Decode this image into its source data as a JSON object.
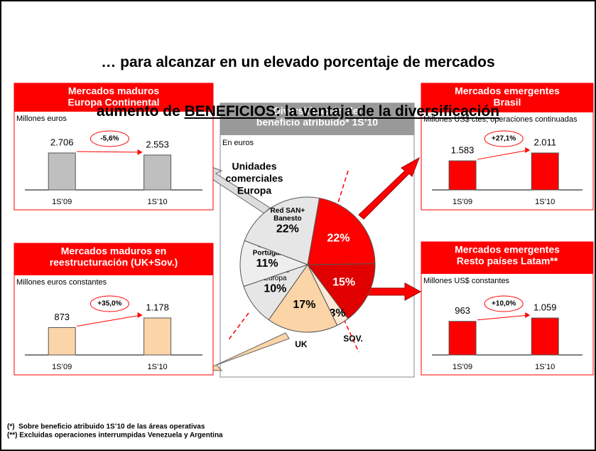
{
  "title": {
    "line1": "… para alcanzar en un elevado porcentaje de mercados",
    "line2": [
      "aumento de ",
      "BENEFICIOS",
      ": ",
      "la ventaja de la diversificación"
    ]
  },
  "chart_data": [
    {
      "type": "bar",
      "title": [
        "Mercados maduros",
        "Europa Continental"
      ],
      "subtitle": "Millones euros",
      "categories": [
        "1S’09",
        "1S’10"
      ],
      "values": [
        2706,
        2553
      ],
      "value_labels": [
        "2.706",
        "2.553"
      ],
      "change": "-5,6%",
      "color": "#bfbfbf"
    },
    {
      "type": "bar",
      "title": [
        "Mercados emergentes",
        "Brasil"
      ],
      "subtitle": "Millones US$ ctes; operaciones continuadas",
      "categories": [
        "1S’09",
        "1S’10"
      ],
      "values": [
        1583,
        2011
      ],
      "value_labels": [
        "1.583",
        "2.011"
      ],
      "change": "+27,1%",
      "color": "#ff0000"
    },
    {
      "type": "bar",
      "title": [
        "Mercados maduros en",
        "reestructuración (UK+Sov.)"
      ],
      "subtitle": "Millones euros constantes",
      "categories": [
        "1S’09",
        "1S’10"
      ],
      "values": [
        873,
        1178
      ],
      "value_labels": [
        "873",
        "1.178"
      ],
      "change": "+35,0%",
      "color": "#fbd4a8"
    },
    {
      "type": "bar",
      "title": [
        "Mercados emergentes",
        "Resto países Latam**"
      ],
      "subtitle": "Millones US$ constantes",
      "categories": [
        "1S’09",
        "1S’10"
      ],
      "values": [
        963,
        1059
      ],
      "value_labels": [
        "963",
        "1.059"
      ],
      "change": "+10,0%",
      "color": "#ff0000"
    },
    {
      "type": "pie",
      "title": [
        "Diversificación del",
        "beneficio atribuido* 1S’10"
      ],
      "subtitle": "En euros",
      "annotation": [
        "Unidades",
        "comerciales",
        "Europa"
      ],
      "categories": [
        null,
        null,
        "SOV.",
        "UK",
        [
          "Globales",
          "Europa"
        ],
        [
          "SCF+",
          "Portugal"
        ],
        [
          "Red SAN+",
          "Banesto"
        ]
      ],
      "values": [
        22,
        15,
        3,
        17,
        10,
        11,
        22
      ],
      "value_labels": [
        "22%",
        "15%",
        "3%",
        "17%",
        "10%",
        "11%",
        "22%"
      ],
      "colors": [
        "#ff0000",
        "#e00000",
        "#fde9d5",
        "#fbd4a8",
        "#e6e6e6",
        "#eeeeee",
        "#e6e6e6"
      ],
      "label_colors": [
        "#ffffff",
        "#ffffff",
        "#000000",
        "#000000",
        "#000000",
        "#000000",
        "#000000"
      ]
    }
  ],
  "footnotes": [
    "(*)  Sobre beneficio atribuido 1S’10 de las áreas operativas",
    "(**) Excluidas operaciones interrumpidas Venezuela y Argentina"
  ]
}
